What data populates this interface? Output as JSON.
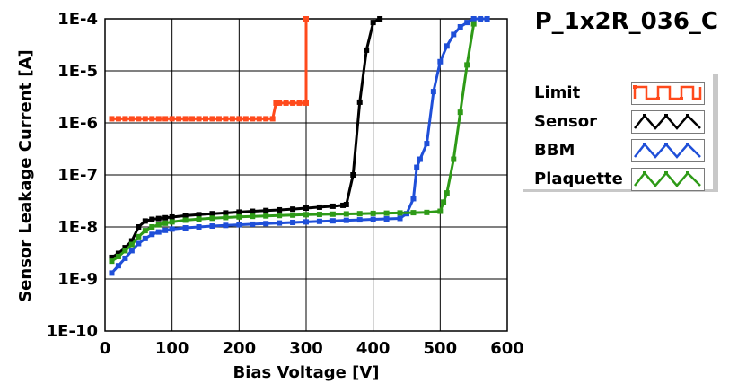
{
  "chart_data": {
    "type": "line",
    "title": "P_1x2R_036_C",
    "xlabel": "Bias Voltage [V]",
    "ylabel": "Sensor Leakage Current [A]",
    "xlim": [
      0,
      600
    ],
    "ylim": [
      1e-10,
      0.0001
    ],
    "yscale": "log",
    "grid": true,
    "legend_position": "right",
    "x_ticks": [
      "0",
      "100",
      "200",
      "300",
      "400",
      "500",
      "600"
    ],
    "y_ticks": [
      "1E-10",
      "1E-9",
      "1E-8",
      "1E-7",
      "1E-6",
      "1E-5",
      "1E-4"
    ],
    "series": [
      {
        "name": "Limit",
        "color": "#ff4a1c",
        "x": [
          10,
          20,
          30,
          40,
          50,
          60,
          70,
          80,
          90,
          100,
          110,
          120,
          130,
          140,
          150,
          160,
          170,
          180,
          190,
          200,
          210,
          220,
          230,
          240,
          250,
          255,
          260,
          270,
          280,
          290,
          300,
          300
        ],
        "y": [
          1.2e-06,
          1.2e-06,
          1.2e-06,
          1.2e-06,
          1.2e-06,
          1.2e-06,
          1.2e-06,
          1.2e-06,
          1.2e-06,
          1.2e-06,
          1.2e-06,
          1.2e-06,
          1.2e-06,
          1.2e-06,
          1.2e-06,
          1.2e-06,
          1.2e-06,
          1.2e-06,
          1.2e-06,
          1.2e-06,
          1.2e-06,
          1.2e-06,
          1.2e-06,
          1.2e-06,
          1.2e-06,
          2.4e-06,
          2.4e-06,
          2.4e-06,
          2.4e-06,
          2.4e-06,
          2.4e-06,
          0.0001
        ]
      },
      {
        "name": "Sensor",
        "color": "#000000",
        "x": [
          10,
          20,
          30,
          40,
          50,
          60,
          70,
          80,
          90,
          100,
          120,
          140,
          160,
          180,
          200,
          220,
          240,
          260,
          280,
          300,
          320,
          340,
          355,
          360,
          370,
          380,
          390,
          400,
          410
        ],
        "y": [
          2.6e-09,
          3.1e-09,
          4e-09,
          5.4e-09,
          1e-08,
          1.3e-08,
          1.4e-08,
          1.45e-08,
          1.5e-08,
          1.55e-08,
          1.65e-08,
          1.72e-08,
          1.8e-08,
          1.86e-08,
          1.93e-08,
          2e-08,
          2.07e-08,
          2.13e-08,
          2.2e-08,
          2.3e-08,
          2.4e-08,
          2.5e-08,
          2.6e-08,
          2.7e-08,
          1e-07,
          2.5e-06,
          2.5e-05,
          8.5e-05,
          0.0001
        ]
      },
      {
        "name": "BBM",
        "color": "#1f4fd8",
        "x": [
          10,
          20,
          30,
          40,
          50,
          60,
          70,
          80,
          90,
          100,
          120,
          140,
          160,
          180,
          200,
          220,
          240,
          260,
          280,
          300,
          320,
          340,
          360,
          380,
          400,
          420,
          440,
          450,
          460,
          465,
          470,
          480,
          490,
          500,
          510,
          520,
          530,
          540,
          550,
          560,
          570
        ],
        "y": [
          1.3e-09,
          1.8e-09,
          2.5e-09,
          3.5e-09,
          4.8e-09,
          6e-09,
          7.2e-09,
          8e-09,
          8.6e-09,
          9.1e-09,
          9.6e-09,
          1e-08,
          1.04e-08,
          1.07e-08,
          1.1e-08,
          1.13e-08,
          1.16e-08,
          1.19e-08,
          1.22e-08,
          1.25e-08,
          1.28e-08,
          1.31e-08,
          1.34e-08,
          1.37e-08,
          1.4e-08,
          1.43e-08,
          1.46e-08,
          1.8e-08,
          3.5e-08,
          1.4e-07,
          2e-07,
          4e-07,
          4e-06,
          1.5e-05,
          3e-05,
          5e-05,
          7e-05,
          8.5e-05,
          0.0001,
          0.0001,
          0.0001
        ]
      },
      {
        "name": "Plaquette",
        "color": "#2e9a17",
        "x": [
          10,
          20,
          30,
          40,
          50,
          60,
          70,
          80,
          90,
          100,
          120,
          140,
          160,
          180,
          200,
          220,
          240,
          260,
          280,
          300,
          320,
          340,
          360,
          380,
          400,
          420,
          440,
          460,
          480,
          500,
          505,
          510,
          520,
          530,
          540,
          550
        ],
        "y": [
          2.2e-09,
          2.7e-09,
          3.5e-09,
          4.6e-09,
          6.5e-09,
          8.5e-09,
          1e-08,
          1.1e-08,
          1.18e-08,
          1.25e-08,
          1.35e-08,
          1.42e-08,
          1.47e-08,
          1.52e-08,
          1.56e-08,
          1.6e-08,
          1.63e-08,
          1.66e-08,
          1.69e-08,
          1.72e-08,
          1.74e-08,
          1.76e-08,
          1.78e-08,
          1.8e-08,
          1.82e-08,
          1.84e-08,
          1.86e-08,
          1.88e-08,
          1.9e-08,
          2e-08,
          3e-08,
          4.5e-08,
          2e-07,
          1.6e-06,
          1.3e-05,
          8e-05
        ]
      }
    ]
  }
}
